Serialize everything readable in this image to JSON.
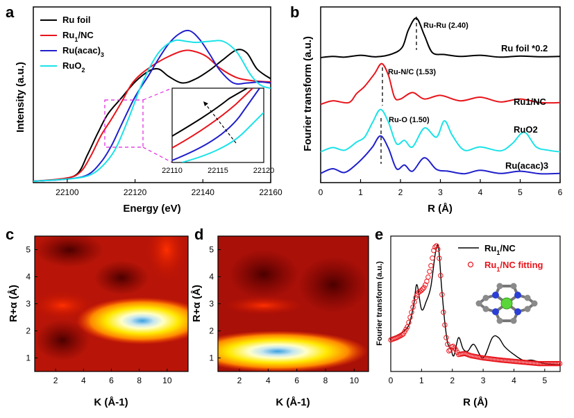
{
  "panels": {
    "a": {
      "label": "a",
      "xlabel": "Energy (eV)",
      "ylabel": "Intensity (a.u.)",
      "xticks": [
        "22100",
        "22120",
        "22140",
        "22160"
      ],
      "inset_xticks": [
        "22110",
        "22115",
        "22120"
      ],
      "legend": [
        {
          "name": "Ru foil",
          "color": "#000000"
        },
        {
          "name": "Ru1/NC",
          "color": "#e8141b"
        },
        {
          "name": "Ru(acac)3",
          "color": "#1f1fcc"
        },
        {
          "name": "RuO2",
          "color": "#19e3e8"
        }
      ]
    },
    "b": {
      "label": "b",
      "xlabel": "R (Å)",
      "ylabel": "Fourier transform (a.u.)",
      "xticks": [
        "0",
        "1",
        "2",
        "3",
        "4",
        "5",
        "6"
      ],
      "annotations": [
        "Ru-Ru (2.40)",
        "Ru-N/C (1.53)",
        "Ru-O (1.50)"
      ],
      "series_labels": [
        "Ru foil *0.2",
        "Ru1/NC",
        "RuO2",
        "Ru(acac)3"
      ]
    },
    "c": {
      "label": "c",
      "xlabel": "K (Å-1)",
      "ylabel": "R+α (Å)",
      "xticks": [
        "2",
        "4",
        "6",
        "8",
        "10"
      ],
      "yticks": [
        "1",
        "2",
        "3",
        "4",
        "5"
      ]
    },
    "d": {
      "label": "d",
      "xlabel": "K (Å-1)",
      "ylabel": "R+α (Å)",
      "xticks": [
        "2",
        "4",
        "6",
        "8",
        "10"
      ],
      "yticks": [
        "1",
        "2",
        "3",
        "4",
        "5"
      ]
    },
    "e": {
      "label": "e",
      "xlabel": "R (Å)",
      "ylabel": "Fourier transform (a.u.)",
      "xticks": [
        "0",
        "1",
        "2",
        "3",
        "4",
        "5"
      ],
      "legend": [
        {
          "name": "Ru1/NC",
          "color": "#000000"
        },
        {
          "name": "Ru1/NC fitting",
          "color": "#e8141b"
        }
      ]
    }
  },
  "chart_data": [
    {
      "panel": "a",
      "type": "line",
      "xlabel": "Energy (eV)",
      "ylabel": "Intensity (a.u.)",
      "xlim": [
        22090,
        22160
      ],
      "ylim": [
        0,
        1.45
      ],
      "series": [
        {
          "name": "Ru foil",
          "color": "#000000",
          "x": [
            22090,
            22098,
            22103,
            22106,
            22109,
            22112,
            22116,
            22120,
            22124,
            22127,
            22130,
            22134,
            22138,
            22142,
            22146,
            22150,
            22153,
            22156,
            22160
          ],
          "y": [
            0,
            0.02,
            0.07,
            0.25,
            0.45,
            0.63,
            0.78,
            0.93,
            1.03,
            1.05,
            0.98,
            0.92,
            0.96,
            1.04,
            1.14,
            1.23,
            1.2,
            1.05,
            0.96
          ]
        },
        {
          "name": "Ru1/NC",
          "color": "#e8141b",
          "x": [
            22090,
            22100,
            22104,
            22107,
            22110,
            22113,
            22116,
            22119,
            22122,
            22126,
            22130,
            22134,
            22137,
            22141,
            22145,
            22150,
            22155,
            22160
          ],
          "y": [
            0,
            0.03,
            0.09,
            0.24,
            0.43,
            0.58,
            0.74,
            0.91,
            1.01,
            1.1,
            1.17,
            1.22,
            1.22,
            1.17,
            1.06,
            0.97,
            0.94,
            0.93
          ]
        },
        {
          "name": "Ru(acac)3",
          "color": "#1f1fcc",
          "x": [
            22090,
            22100,
            22106,
            22110,
            22113,
            22116,
            22120,
            22124,
            22127,
            22130,
            22133,
            22136,
            22139,
            22142,
            22145,
            22149,
            22153,
            22157,
            22160
          ],
          "y": [
            0,
            0.02,
            0.06,
            0.18,
            0.33,
            0.53,
            0.79,
            0.99,
            1.15,
            1.29,
            1.38,
            1.41,
            1.33,
            1.19,
            1.04,
            0.92,
            0.92,
            0.93,
            0.92
          ]
        },
        {
          "name": "RuO2",
          "color": "#19e3e8",
          "x": [
            22090,
            22100,
            22106,
            22110,
            22114,
            22118,
            22122,
            22126,
            22129,
            22132,
            22135,
            22138,
            22142,
            22146,
            22150,
            22154,
            22157,
            22160
          ],
          "y": [
            0,
            0.02,
            0.05,
            0.13,
            0.29,
            0.58,
            0.91,
            1.16,
            1.27,
            1.32,
            1.31,
            1.3,
            1.31,
            1.31,
            1.21,
            1.0,
            0.9,
            0.87
          ]
        }
      ]
    },
    {
      "panel": "b",
      "type": "line",
      "xlabel": "R (Å)",
      "ylabel": "Fourier transform (a.u.)",
      "xlim": [
        0,
        6
      ],
      "series": [
        {
          "name": "Ru foil *0.2",
          "color": "#000000",
          "offset": 3.6,
          "x": [
            0,
            0.3,
            0.6,
            1.0,
            1.4,
            1.8,
            2.05,
            2.2,
            2.4,
            2.6,
            2.8,
            3.1,
            3.5,
            4.0,
            4.5,
            5.0,
            5.5,
            6.0
          ],
          "y": [
            0.02,
            0.05,
            0.03,
            0.08,
            0.04,
            0.12,
            0.3,
            0.75,
            1.05,
            0.6,
            0.15,
            0.1,
            0.05,
            0.08,
            0.03,
            0.06,
            0.04,
            0.05
          ]
        },
        {
          "name": "Ru1/NC",
          "color": "#e8141b",
          "offset": 2.3,
          "x": [
            0,
            0.3,
            0.7,
            0.9,
            1.1,
            1.35,
            1.53,
            1.7,
            1.85,
            2.0,
            2.3,
            2.6,
            3.0,
            3.5,
            4.0,
            4.5,
            5.0,
            5.5,
            6.0
          ],
          "y": [
            0.05,
            0.15,
            0.1,
            0.35,
            0.55,
            0.9,
            1.18,
            0.85,
            0.25,
            0.2,
            0.38,
            0.2,
            0.3,
            0.15,
            0.25,
            0.12,
            0.2,
            0.1,
            0.1
          ]
        },
        {
          "name": "RuO2",
          "color": "#19e3e8",
          "offset": 0.75,
          "x": [
            0,
            0.3,
            0.6,
            0.9,
            1.1,
            1.3,
            1.5,
            1.7,
            1.9,
            2.1,
            2.3,
            2.6,
            2.9,
            3.1,
            3.3,
            3.6,
            4.0,
            4.5,
            4.8,
            5.1,
            5.4,
            5.7,
            6.0
          ],
          "y": [
            0.05,
            0.18,
            0.1,
            0.35,
            0.5,
            0.95,
            1.35,
            0.95,
            0.3,
            0.4,
            0.2,
            0.78,
            0.5,
            1.0,
            0.55,
            0.1,
            0.2,
            0.08,
            0.3,
            0.65,
            0.2,
            0.1,
            0.05
          ]
        },
        {
          "name": "Ru(acac)3",
          "color": "#1f1fcc",
          "offset": 0.0,
          "x": [
            0,
            0.3,
            0.6,
            0.9,
            1.1,
            1.3,
            1.5,
            1.7,
            1.9,
            2.1,
            2.3,
            2.6,
            2.9,
            3.2,
            3.6,
            4.0,
            4.5,
            5.0,
            5.5,
            6.0
          ],
          "y": [
            0.05,
            0.2,
            0.08,
            0.35,
            0.6,
            0.9,
            1.25,
            0.85,
            0.2,
            0.32,
            0.12,
            0.55,
            0.18,
            0.12,
            0.04,
            0.15,
            0.05,
            0.12,
            0.04,
            0.05
          ]
        }
      ]
    },
    {
      "panel": "c",
      "type": "heatmap",
      "title": "",
      "xlabel": "K (Å-1)",
      "ylabel": "R+α (Å)",
      "xlim": [
        0.5,
        11.5
      ],
      "ylim": [
        0.5,
        5.5
      ],
      "description": "WT-EXAFS of Ru foil; intensity maximum near K ≈ 9 Å-1, R ≈ 2.45 Å"
    },
    {
      "panel": "d",
      "type": "heatmap",
      "xlabel": "K (Å-1)",
      "ylabel": "R+α (Å)",
      "xlim": [
        0.5,
        11
      ],
      "ylim": [
        0.5,
        5.5
      ],
      "description": "WT-EXAFS of Ru1/NC; intensity maximum near K ≈ 4 Å-1, R ≈ 1.5 Å"
    },
    {
      "panel": "e",
      "type": "line",
      "xlabel": "R (Å)",
      "ylabel": "Fourier transform (a.u.)",
      "xlim": [
        0,
        5.5
      ],
      "ylim": [
        0,
        1.2
      ],
      "series": [
        {
          "name": "Ru1/NC",
          "color": "#000000",
          "x": [
            0,
            0.2,
            0.4,
            0.6,
            0.75,
            0.85,
            1.0,
            1.15,
            1.3,
            1.45,
            1.55,
            1.65,
            1.75,
            1.85,
            1.95,
            2.05,
            2.2,
            2.35,
            2.5,
            2.7,
            3.0,
            3.3,
            3.5,
            3.7,
            4.0,
            4.3,
            4.6,
            5.0,
            5.5
          ],
          "y": [
            0.3,
            0.32,
            0.35,
            0.42,
            0.6,
            0.77,
            0.55,
            0.62,
            0.75,
            1.05,
            1.1,
            0.75,
            0.45,
            0.25,
            0.2,
            0.14,
            0.3,
            0.2,
            0.18,
            0.24,
            0.12,
            0.3,
            0.3,
            0.22,
            0.15,
            0.1,
            0.1,
            0.07,
            0.06
          ]
        },
        {
          "name": "Ru1/NC fitting",
          "color": "#e8141b",
          "x": [
            0,
            0.2,
            0.4,
            0.55,
            0.7,
            0.8,
            0.9,
            1.0,
            1.1,
            1.2,
            1.3,
            1.4,
            1.47,
            1.52,
            1.57,
            1.62,
            1.7,
            1.8,
            1.9,
            2.0,
            2.1,
            2.2,
            2.4,
            2.6,
            2.8,
            3.0,
            3.3,
            3.6,
            4.0,
            4.4,
            4.8,
            5.2,
            5.5
          ],
          "y": [
            0.28,
            0.3,
            0.33,
            0.4,
            0.55,
            0.65,
            0.7,
            0.72,
            0.75,
            0.82,
            0.93,
            1.08,
            1.12,
            1.1,
            1.02,
            0.85,
            0.55,
            0.3,
            0.17,
            0.23,
            0.2,
            0.15,
            0.16,
            0.14,
            0.13,
            0.12,
            0.11,
            0.1,
            0.09,
            0.08,
            0.07,
            0.07,
            0.07
          ]
        }
      ]
    }
  ]
}
